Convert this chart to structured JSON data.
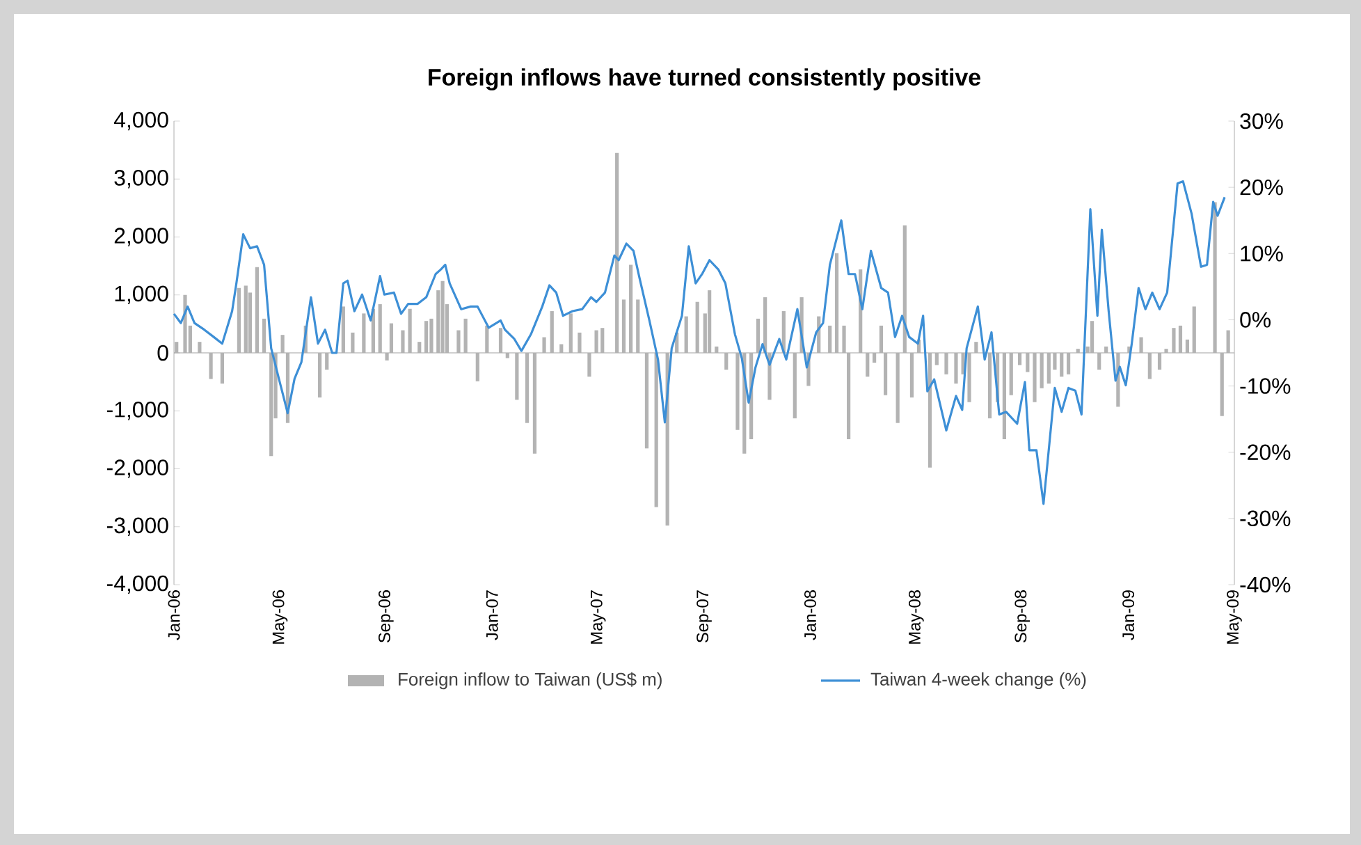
{
  "chart_data": {
    "type": "bar",
    "title": "Foreign inflows have turned consistently positive",
    "xlim": [
      "2006-01",
      "2009-05"
    ],
    "xticks": [
      {
        "value": "2006-01",
        "label": "Jan-06"
      },
      {
        "value": "2006-05",
        "label": "May-06"
      },
      {
        "value": "2006-09",
        "label": "Sep-06"
      },
      {
        "value": "2007-01",
        "label": "Jan-07"
      },
      {
        "value": "2007-05",
        "label": "May-07"
      },
      {
        "value": "2007-09",
        "label": "Sep-07"
      },
      {
        "value": "2008-01",
        "label": "Jan-08"
      },
      {
        "value": "2008-05",
        "label": "May-08"
      },
      {
        "value": "2008-09",
        "label": "Sep-08"
      },
      {
        "value": "2009-01",
        "label": "Jan-09"
      },
      {
        "value": "2009-05",
        "label": "May-09"
      }
    ],
    "ylim": [
      -4000,
      4000
    ],
    "yticks": [
      {
        "value": 4000,
        "label": "4,000"
      },
      {
        "value": 3000,
        "label": "3,000"
      },
      {
        "value": 2000,
        "label": "2,000"
      },
      {
        "value": 1000,
        "label": "1,000"
      },
      0,
      {
        "value": -1000,
        "label": "-1,000"
      },
      {
        "value": -2000,
        "label": "-2,000"
      },
      {
        "value": -3000,
        "label": "-3,000"
      },
      {
        "value": -4000,
        "label": "-4,000"
      }
    ],
    "y2lim": [
      -40,
      30
    ],
    "y2ticks": [
      {
        "value": 30,
        "label": "30%"
      },
      {
        "value": 20,
        "label": "20%"
      },
      {
        "value": 10,
        "label": "10%"
      },
      {
        "value": 0,
        "label": "0%"
      },
      {
        "value": -10,
        "label": "-10%"
      },
      {
        "value": -20,
        "label": "-20%"
      },
      {
        "value": -30,
        "label": "-30%"
      },
      {
        "value": -40,
        "label": "-40%"
      }
    ],
    "legend": "bottom",
    "series": [
      {
        "name": "Foreign inflow to Taiwan (US$ m)",
        "color": "#b3b3b3",
        "x": [
          "2006-01-04",
          "2006-01-14",
          "2006-01-20",
          "2006-01-31",
          "2006-02-12",
          "2006-02-24",
          "2006-03-15",
          "2006-03-23",
          "2006-03-28",
          "2006-04-05",
          "2006-04-13",
          "2006-04-21",
          "2006-04-26",
          "2006-05-04",
          "2006-05-10",
          "2006-05-31",
          "2006-06-16",
          "2006-06-24",
          "2006-07-13",
          "2006-07-24",
          "2006-08-06",
          "2006-08-17",
          "2006-08-25",
          "2006-09-02",
          "2006-09-07",
          "2006-09-20",
          "2006-09-28",
          "2006-10-09",
          "2006-10-17",
          "2006-10-23",
          "2006-10-31",
          "2006-11-05",
          "2006-11-10",
          "2006-11-23",
          "2006-12-01",
          "2006-12-15",
          "2006-12-26",
          "2007-01-11",
          "2007-01-19",
          "2007-01-30",
          "2007-02-10",
          "2007-02-18",
          "2007-02-28",
          "2007-03-09",
          "2007-03-20",
          "2007-03-31",
          "2007-04-10",
          "2007-04-21",
          "2007-04-29",
          "2007-05-06",
          "2007-05-23",
          "2007-05-31",
          "2007-06-08",
          "2007-06-16",
          "2007-06-26",
          "2007-07-07",
          "2007-07-20",
          "2007-07-31",
          "2007-08-11",
          "2007-08-24",
          "2007-09-02",
          "2007-09-07",
          "2007-09-15",
          "2007-09-26",
          "2007-10-09",
          "2007-10-17",
          "2007-10-25",
          "2007-11-02",
          "2007-11-10",
          "2007-11-15",
          "2007-12-01",
          "2007-12-14",
          "2007-12-22",
          "2007-12-30",
          "2008-01-11",
          "2008-01-24",
          "2008-02-01",
          "2008-02-09",
          "2008-02-14",
          "2008-02-27",
          "2008-03-06",
          "2008-03-14",
          "2008-03-22",
          "2008-03-27",
          "2008-04-10",
          "2008-04-18",
          "2008-04-26",
          "2008-05-04",
          "2008-05-17",
          "2008-05-25",
          "2008-06-05",
          "2008-06-16",
          "2008-06-24",
          "2008-07-01",
          "2008-07-09",
          "2008-07-25",
          "2008-08-03",
          "2008-08-11",
          "2008-08-19",
          "2008-08-29",
          "2008-09-07",
          "2008-09-15",
          "2008-09-23",
          "2008-10-01",
          "2008-10-08",
          "2008-10-16",
          "2008-10-24",
          "2008-11-04",
          "2008-11-15",
          "2008-11-20",
          "2008-11-28",
          "2008-12-06",
          "2008-12-20",
          "2009-01-02",
          "2009-01-16",
          "2009-01-26",
          "2009-02-06",
          "2009-02-13",
          "2009-02-21",
          "2009-02-28",
          "2009-03-08",
          "2009-03-16",
          "2009-03-24",
          "2009-04-09",
          "2009-04-17",
          "2009-04-24"
        ],
        "values": [
          190,
          1000,
          470,
          190,
          -450,
          -530,
          1120,
          1160,
          1040,
          1480,
          590,
          -1780,
          -1130,
          310,
          -1210,
          470,
          -770,
          -290,
          800,
          350,
          680,
          760,
          840,
          -130,
          510,
          390,
          760,
          190,
          550,
          590,
          1080,
          1240,
          840,
          390,
          590,
          -490,
          470,
          430,
          -90,
          -810,
          -1210,
          -1740,
          270,
          720,
          150,
          680,
          350,
          -410,
          390,
          430,
          3450,
          920,
          1520,
          920,
          -1650,
          -2660,
          -2980,
          350,
          630,
          880,
          680,
          1080,
          110,
          -290,
          -1330,
          -1740,
          -1490,
          590,
          960,
          -810,
          720,
          -1130,
          960,
          -570,
          630,
          470,
          1720,
          470,
          -1490,
          1440,
          -410,
          -170,
          470,
          -730,
          -1210,
          2200,
          -770,
          230,
          -1980,
          -210,
          -370,
          -530,
          -370,
          -850,
          190,
          -1130,
          -850,
          -1490,
          -730,
          -210,
          -330,
          -850,
          -610,
          -530,
          -290,
          -410,
          -370,
          70,
          110,
          550,
          -290,
          110,
          -930,
          110,
          270,
          -450,
          -290,
          70,
          430,
          470,
          230,
          800,
          null,
          2600,
          -1090,
          390
        ]
      },
      {
        "name": "Taiwan 4-week change (%)",
        "type": "line",
        "color": "#3d8fd6",
        "axis": "y2",
        "x": [
          "2006-01-01",
          "2006-01-09",
          "2006-01-17",
          "2006-01-25",
          "2006-02-05",
          "2006-02-15",
          "2006-02-24",
          "2006-03-07",
          "2006-03-12",
          "2006-03-20",
          "2006-03-28",
          "2006-04-05",
          "2006-04-13",
          "2006-04-21",
          "2006-04-29",
          "2006-05-10",
          "2006-05-18",
          "2006-05-26",
          "2006-06-06",
          "2006-06-14",
          "2006-06-22",
          "2006-06-30",
          "2006-07-05",
          "2006-07-13",
          "2006-07-18",
          "2006-07-26",
          "2006-08-04",
          "2006-08-14",
          "2006-08-25",
          "2006-08-30",
          "2006-09-10",
          "2006-09-18",
          "2006-09-26",
          "2006-10-07",
          "2006-10-17",
          "2006-10-28",
          "2006-11-03",
          "2006-11-08",
          "2006-11-13",
          "2006-11-26",
          "2006-12-07",
          "2006-12-15",
          "2006-12-28",
          "2007-01-11",
          "2007-01-16",
          "2007-01-27",
          "2007-02-04",
          "2007-02-14",
          "2007-02-26",
          "2007-03-06",
          "2007-03-14",
          "2007-03-22",
          "2007-04-02",
          "2007-04-13",
          "2007-04-23",
          "2007-04-29",
          "2007-05-09",
          "2007-05-20",
          "2007-05-25",
          "2007-06-03",
          "2007-06-11",
          "2007-06-18",
          "2007-06-29",
          "2007-07-09",
          "2007-07-17",
          "2007-07-25",
          "2007-08-06",
          "2007-08-14",
          "2007-08-22",
          "2007-08-30",
          "2007-09-07",
          "2007-09-17",
          "2007-09-25",
          "2007-10-06",
          "2007-10-14",
          "2007-10-22",
          "2007-10-30",
          "2007-11-07",
          "2007-11-15",
          "2007-11-26",
          "2007-12-04",
          "2007-12-17",
          "2007-12-28",
          "2008-01-08",
          "2008-01-16",
          "2008-01-24",
          "2008-02-06",
          "2008-02-14",
          "2008-02-21",
          "2008-02-29",
          "2008-03-10",
          "2008-03-22",
          "2008-03-30",
          "2008-04-07",
          "2008-04-15",
          "2008-04-23",
          "2008-05-03",
          "2008-05-09",
          "2008-05-14",
          "2008-05-22",
          "2008-06-05",
          "2008-06-16",
          "2008-06-23",
          "2008-06-28",
          "2008-07-11",
          "2008-07-19",
          "2008-07-27",
          "2008-08-05",
          "2008-08-13",
          "2008-08-26",
          "2008-09-04",
          "2008-09-09",
          "2008-09-17",
          "2008-09-25",
          "2008-10-08",
          "2008-10-16",
          "2008-10-24",
          "2008-11-01",
          "2008-11-08",
          "2008-11-18",
          "2008-11-26",
          "2008-12-01",
          "2008-12-09",
          "2008-12-17",
          "2008-12-22",
          "2008-12-29",
          "2009-01-05",
          "2009-01-13",
          "2009-01-21",
          "2009-01-29",
          "2009-02-06",
          "2009-02-14",
          "2009-02-25",
          "2009-03-03",
          "2009-03-13",
          "2009-03-24",
          "2009-03-31",
          "2009-04-07",
          "2009-04-12",
          "2009-04-20"
        ],
        "values": [
          0.9,
          -0.5,
          2.0,
          -0.5,
          -1.5,
          -2.6,
          -3.6,
          1.3,
          5.5,
          12.9,
          10.8,
          11.1,
          8.3,
          -4.3,
          -8.5,
          -14.1,
          -8.9,
          -6.4,
          3.4,
          -3.6,
          -1.5,
          -5.0,
          -5.0,
          5.5,
          5.9,
          1.3,
          3.8,
          -0.1,
          6.6,
          3.8,
          4.1,
          0.9,
          2.4,
          2.4,
          3.4,
          6.9,
          7.6,
          8.3,
          5.5,
          1.6,
          2.0,
          2.0,
          -1.2,
          -0.1,
          -1.5,
          -2.9,
          -4.7,
          -2.2,
          2.0,
          5.2,
          4.1,
          0.6,
          1.3,
          1.6,
          3.4,
          2.7,
          4.1,
          9.7,
          9.0,
          11.5,
          10.4,
          6.2,
          -0.1,
          -6.0,
          -15.5,
          -4.3,
          0.6,
          11.1,
          5.5,
          7.0,
          9.0,
          7.6,
          5.5,
          -2.2,
          -5.8,
          -12.5,
          -7.2,
          -3.7,
          -6.8,
          -2.9,
          -6.0,
          1.6,
          -7.2,
          -1.9,
          -0.5,
          8.3,
          15.0,
          6.9,
          6.9,
          1.6,
          10.4,
          4.8,
          4.1,
          -2.6,
          0.6,
          -2.6,
          -3.6,
          0.6,
          -10.8,
          -9.0,
          -16.7,
          -11.5,
          -13.6,
          -4.3,
          2.0,
          -6.0,
          -1.9,
          -14.3,
          -13.9,
          -15.7,
          -9.4,
          -19.7,
          -19.7,
          -27.8,
          -10.3,
          -13.9,
          -10.3,
          -10.7,
          -14.3,
          16.7,
          0.6,
          13.6,
          1.3,
          -9.2,
          -7.1,
          -9.9,
          -3.6,
          4.8,
          1.6,
          4.1,
          1.6,
          4.1,
          20.6,
          20.9,
          16.0,
          8.0,
          8.3,
          17.8,
          15.7,
          18.5
        ]
      }
    ]
  }
}
